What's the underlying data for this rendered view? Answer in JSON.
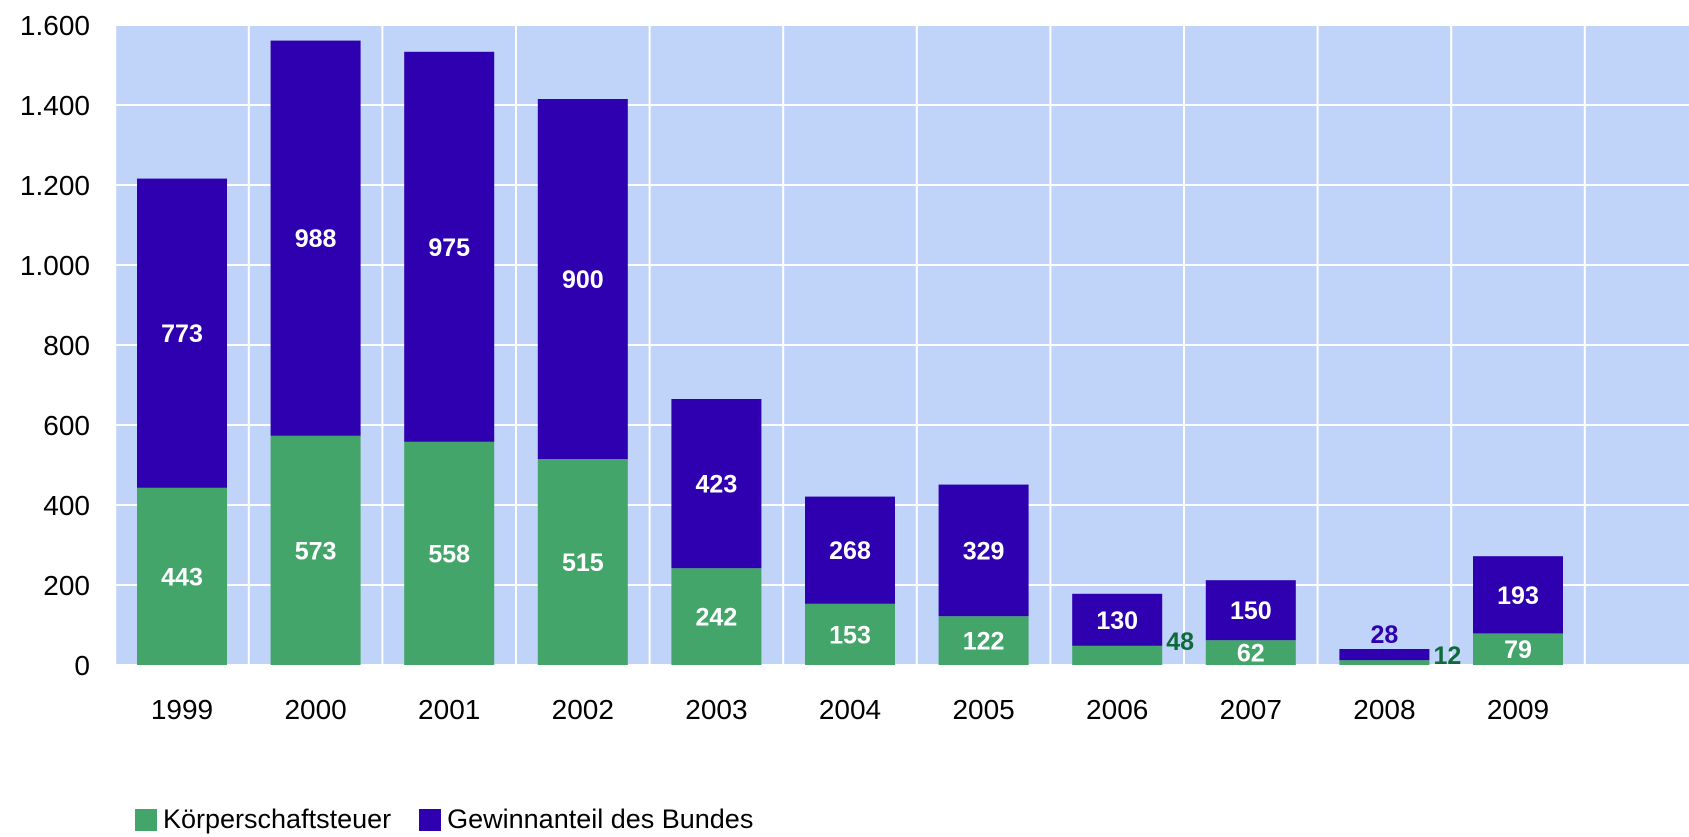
{
  "chart_data": {
    "type": "bar",
    "stacked": true,
    "categories": [
      "1999",
      "2000",
      "2001",
      "2002",
      "2003",
      "2004",
      "2005",
      "2006",
      "2007",
      "2008",
      "2009"
    ],
    "series": [
      {
        "name": "Körperschaftsteuer",
        "color": "#44a56a",
        "values": [
          443,
          573,
          558,
          515,
          242,
          153,
          122,
          48,
          62,
          12,
          79
        ]
      },
      {
        "name": "Gewinnanteil des Bundes",
        "color": "#2e00b0",
        "values": [
          773,
          988,
          975,
          900,
          423,
          268,
          329,
          130,
          150,
          28,
          193
        ]
      }
    ],
    "ylim": [
      0,
      1600
    ],
    "yticks": [
      0,
      200,
      400,
      600,
      800,
      1000,
      1200,
      1400,
      1600
    ],
    "ytick_labels": [
      "0",
      "200",
      "400",
      "600",
      "800",
      "1.000",
      "1.200",
      "1.400",
      "1.600"
    ],
    "grid": true,
    "plot_background": "#c0d3f8",
    "legend_position": "bottom-left"
  }
}
